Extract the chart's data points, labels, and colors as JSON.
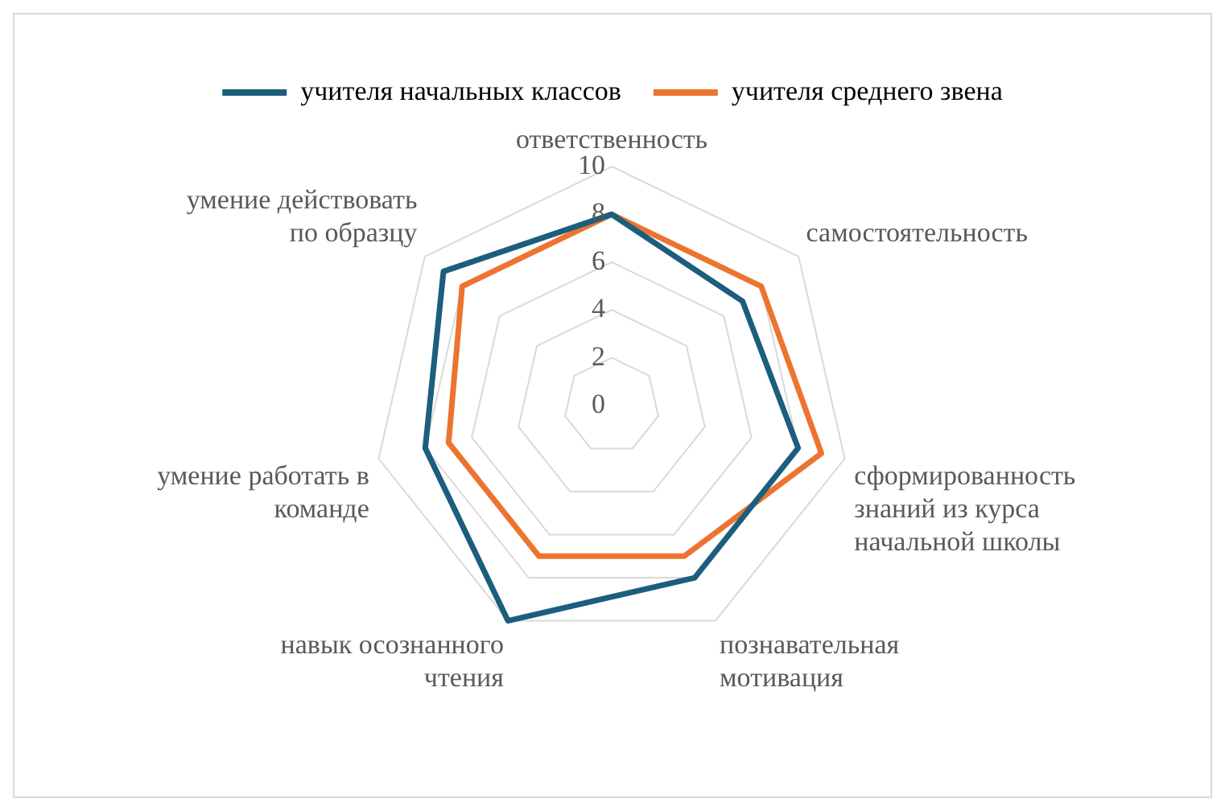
{
  "chart_data": {
    "type": "radar",
    "categories": [
      "ответственность",
      "самостоятельность",
      "сформированность знаний из курса начальной школы",
      "познавательная мотивация",
      "навык осознанного чтения",
      "умение работать в команде",
      "умение действовать по образцу"
    ],
    "series": [
      {
        "name": "учителя начальных классов",
        "color": "#1b5e7e",
        "values": [
          8,
          7,
          8,
          8,
          10,
          8,
          9
        ]
      },
      {
        "name": "учителя среднего звена",
        "color": "#ed7430",
        "values": [
          8,
          8,
          9,
          7,
          7,
          7,
          8
        ]
      }
    ],
    "ylim": [
      0,
      10
    ],
    "yticks": [
      0,
      2,
      4,
      6,
      8,
      10
    ],
    "grid": true,
    "legend": "top",
    "marker": "none"
  }
}
